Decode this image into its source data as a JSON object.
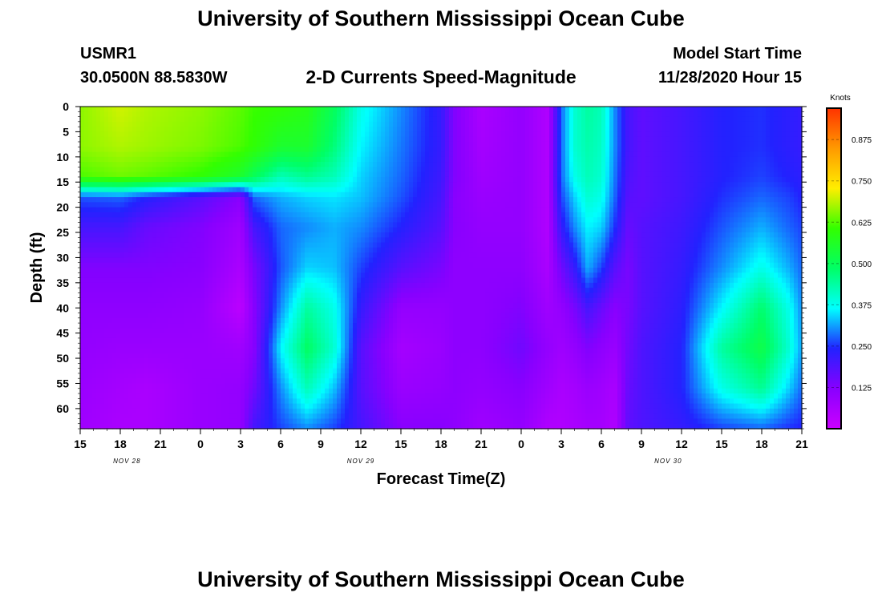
{
  "header": {
    "title": "University of Southern Mississippi Ocean Cube",
    "station": "USMR1",
    "coords": "30.0500N 88.5830W",
    "subtitle": "2-D Currents Speed-Magnitude",
    "model_label": "Model Start Time",
    "model_time": "11/28/2020 Hour 15"
  },
  "footer": {
    "title": "University of Southern Mississippi Ocean Cube"
  },
  "colors": {
    "palette": [
      "#cc00ff",
      "#8800ff",
      "#2222ff",
      "#00ffff",
      "#00ff66",
      "#33ff00",
      "#ffee00",
      "#ff9900",
      "#ff3300"
    ]
  },
  "chart_data": {
    "type": "heatmap",
    "title": "2-D Currents Speed-Magnitude",
    "xlabel": "Forecast Time(Z)",
    "ylabel": "Depth (ft)",
    "x_ticks": [
      "15",
      "18",
      "21",
      "0",
      "3",
      "6",
      "9",
      "12",
      "15",
      "18",
      "21",
      "0",
      "3",
      "6",
      "9",
      "12",
      "15",
      "18",
      "21"
    ],
    "x_hours": [
      0,
      3,
      6,
      9,
      12,
      15,
      18,
      21,
      24,
      27,
      30,
      33,
      36,
      39,
      42,
      45,
      48,
      51,
      54
    ],
    "date_labels": [
      {
        "label": "NOV  28",
        "hour": 3.5
      },
      {
        "label": "NOV  29",
        "hour": 21
      },
      {
        "label": "NOV  30",
        "hour": 44
      }
    ],
    "y_ticks": [
      0,
      5,
      10,
      15,
      20,
      25,
      30,
      35,
      40,
      45,
      50,
      55,
      60
    ],
    "ylim": [
      0,
      64
    ],
    "xlim_hours": [
      0,
      54
    ],
    "colorbar": {
      "title": "Knots",
      "ticks": [
        "0.875",
        "0.750",
        "0.625",
        "0.500",
        "0.375",
        "0.250",
        "0.125"
      ],
      "tick_values": [
        0.875,
        0.75,
        0.625,
        0.5,
        0.375,
        0.25,
        0.125
      ],
      "range": [
        0.0,
        0.97
      ]
    },
    "depths_ft": [
      0,
      8,
      14,
      18,
      24,
      32,
      40,
      48,
      56,
      64
    ],
    "columns": [
      {
        "hour": 0,
        "speed": [
          0.66,
          0.66,
          0.62,
          0.27,
          0.2,
          0.13,
          0.11,
          0.1,
          0.09,
          0.08
        ]
      },
      {
        "hour": 3,
        "speed": [
          0.7,
          0.68,
          0.64,
          0.28,
          0.2,
          0.13,
          0.11,
          0.09,
          0.07,
          0.06
        ]
      },
      {
        "hour": 5,
        "speed": [
          0.68,
          0.67,
          0.63,
          0.24,
          0.16,
          0.13,
          0.11,
          0.09,
          0.06,
          0.06
        ]
      },
      {
        "hour": 9,
        "speed": [
          0.66,
          0.65,
          0.6,
          0.18,
          0.13,
          0.12,
          0.1,
          0.09,
          0.09,
          0.09
        ]
      },
      {
        "hour": 12,
        "speed": [
          0.63,
          0.62,
          0.55,
          0.12,
          0.08,
          0.06,
          0.03,
          0.08,
          0.1,
          0.1
        ]
      },
      {
        "hour": 13,
        "speed": [
          0.61,
          0.6,
          0.5,
          0.28,
          0.2,
          0.14,
          0.12,
          0.12,
          0.15,
          0.2
        ]
      },
      {
        "hour": 15,
        "speed": [
          0.6,
          0.55,
          0.42,
          0.32,
          0.28,
          0.27,
          0.3,
          0.36,
          0.3,
          0.26
        ]
      },
      {
        "hour": 17,
        "speed": [
          0.58,
          0.55,
          0.45,
          0.34,
          0.3,
          0.34,
          0.44,
          0.49,
          0.42,
          0.3
        ]
      },
      {
        "hour": 19,
        "speed": [
          0.5,
          0.47,
          0.42,
          0.35,
          0.32,
          0.33,
          0.38,
          0.4,
          0.33,
          0.26
        ]
      },
      {
        "hour": 21,
        "speed": [
          0.38,
          0.36,
          0.34,
          0.33,
          0.3,
          0.26,
          0.22,
          0.18,
          0.18,
          0.2
        ]
      },
      {
        "hour": 24,
        "speed": [
          0.3,
          0.29,
          0.28,
          0.27,
          0.24,
          0.18,
          0.1,
          0.07,
          0.09,
          0.12
        ]
      },
      {
        "hour": 27,
        "speed": [
          0.22,
          0.22,
          0.21,
          0.2,
          0.18,
          0.14,
          0.1,
          0.09,
          0.1,
          0.12
        ]
      },
      {
        "hour": 28,
        "speed": [
          0.13,
          0.13,
          0.13,
          0.12,
          0.12,
          0.11,
          0.11,
          0.11,
          0.11,
          0.11
        ]
      },
      {
        "hour": 30,
        "speed": [
          0.06,
          0.07,
          0.08,
          0.09,
          0.1,
          0.11,
          0.11,
          0.11,
          0.1,
          0.08
        ]
      },
      {
        "hour": 33,
        "speed": [
          0.1,
          0.1,
          0.1,
          0.1,
          0.1,
          0.11,
          0.13,
          0.15,
          0.12,
          0.1
        ]
      },
      {
        "hour": 35,
        "speed": [
          0.05,
          0.05,
          0.05,
          0.05,
          0.05,
          0.06,
          0.08,
          0.1,
          0.08,
          0.05
        ]
      },
      {
        "hour": 36,
        "speed": [
          0.28,
          0.28,
          0.28,
          0.26,
          0.22,
          0.15,
          0.1,
          0.08,
          0.06,
          0.05
        ]
      },
      {
        "hour": 37,
        "speed": [
          0.4,
          0.4,
          0.38,
          0.34,
          0.3,
          0.22,
          0.14,
          0.1,
          0.07,
          0.06
        ]
      },
      {
        "hour": 38,
        "speed": [
          0.44,
          0.43,
          0.42,
          0.4,
          0.36,
          0.32,
          0.2,
          0.13,
          0.09,
          0.07
        ]
      },
      {
        "hour": 39,
        "speed": [
          0.42,
          0.41,
          0.4,
          0.38,
          0.34,
          0.26,
          0.16,
          0.11,
          0.08,
          0.07
        ]
      },
      {
        "hour": 40,
        "speed": [
          0.3,
          0.3,
          0.29,
          0.28,
          0.25,
          0.18,
          0.12,
          0.09,
          0.06,
          0.05
        ]
      },
      {
        "hour": 41,
        "speed": [
          0.2,
          0.2,
          0.19,
          0.18,
          0.16,
          0.14,
          0.14,
          0.15,
          0.16,
          0.17
        ]
      },
      {
        "hour": 42,
        "speed": [
          0.17,
          0.17,
          0.17,
          0.17,
          0.18,
          0.18,
          0.18,
          0.19,
          0.19,
          0.19
        ]
      },
      {
        "hour": 45,
        "speed": [
          0.2,
          0.2,
          0.2,
          0.2,
          0.21,
          0.22,
          0.23,
          0.24,
          0.24,
          0.22
        ]
      },
      {
        "hour": 48,
        "speed": [
          0.24,
          0.24,
          0.24,
          0.25,
          0.27,
          0.3,
          0.36,
          0.44,
          0.38,
          0.26
        ]
      },
      {
        "hour": 51,
        "speed": [
          0.25,
          0.25,
          0.26,
          0.28,
          0.32,
          0.38,
          0.48,
          0.52,
          0.45,
          0.28
        ]
      },
      {
        "hour": 53,
        "speed": [
          0.23,
          0.23,
          0.24,
          0.26,
          0.28,
          0.32,
          0.38,
          0.4,
          0.34,
          0.25
        ]
      },
      {
        "hour": 54,
        "speed": [
          0.22,
          0.22,
          0.23,
          0.24,
          0.26,
          0.28,
          0.3,
          0.31,
          0.28,
          0.24
        ]
      }
    ]
  }
}
